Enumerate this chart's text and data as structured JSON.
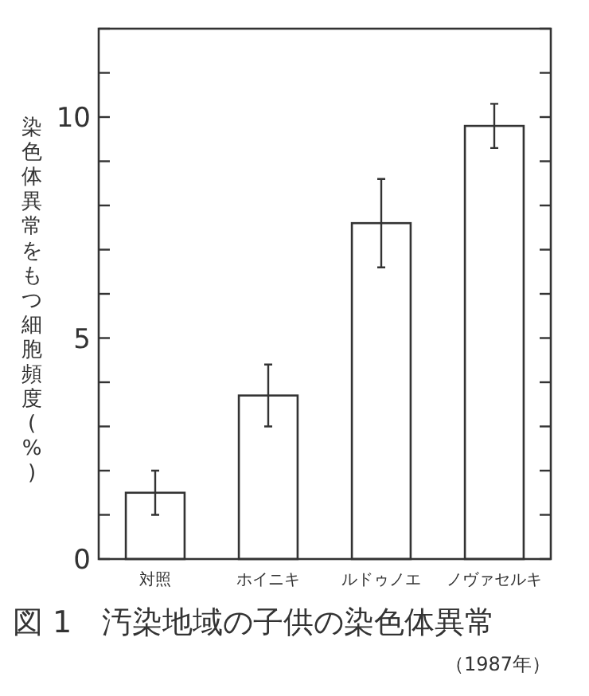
{
  "chart_data": {
    "type": "bar",
    "title": "図 1　汚染地域の子供の染色体異常",
    "subtitle": "（1987年）",
    "ylabel": "染色体異常をもつ細胞頻度(%)",
    "categories": [
      "対照",
      "ホイニキ",
      "ルドゥノエ",
      "ノヴァセルキ"
    ],
    "values": [
      1.5,
      3.7,
      7.6,
      9.8
    ],
    "errors": [
      0.5,
      0.7,
      1.0,
      0.5
    ],
    "color": "#ffffff",
    "ylim": [
      0,
      12
    ],
    "yticks": [
      0,
      {
        "value": 1,
        "label": null
      },
      {
        "value": 2,
        "label": null
      },
      {
        "value": 3,
        "label": null
      },
      {
        "value": 4,
        "label": null
      },
      5,
      {
        "value": 6,
        "label": null
      },
      {
        "value": 7,
        "label": null
      },
      {
        "value": 8,
        "label": null
      },
      {
        "value": 9,
        "label": null
      },
      10,
      {
        "value": 11,
        "label": null
      },
      {
        "value": 12,
        "label": null
      }
    ],
    "grid": false
  }
}
